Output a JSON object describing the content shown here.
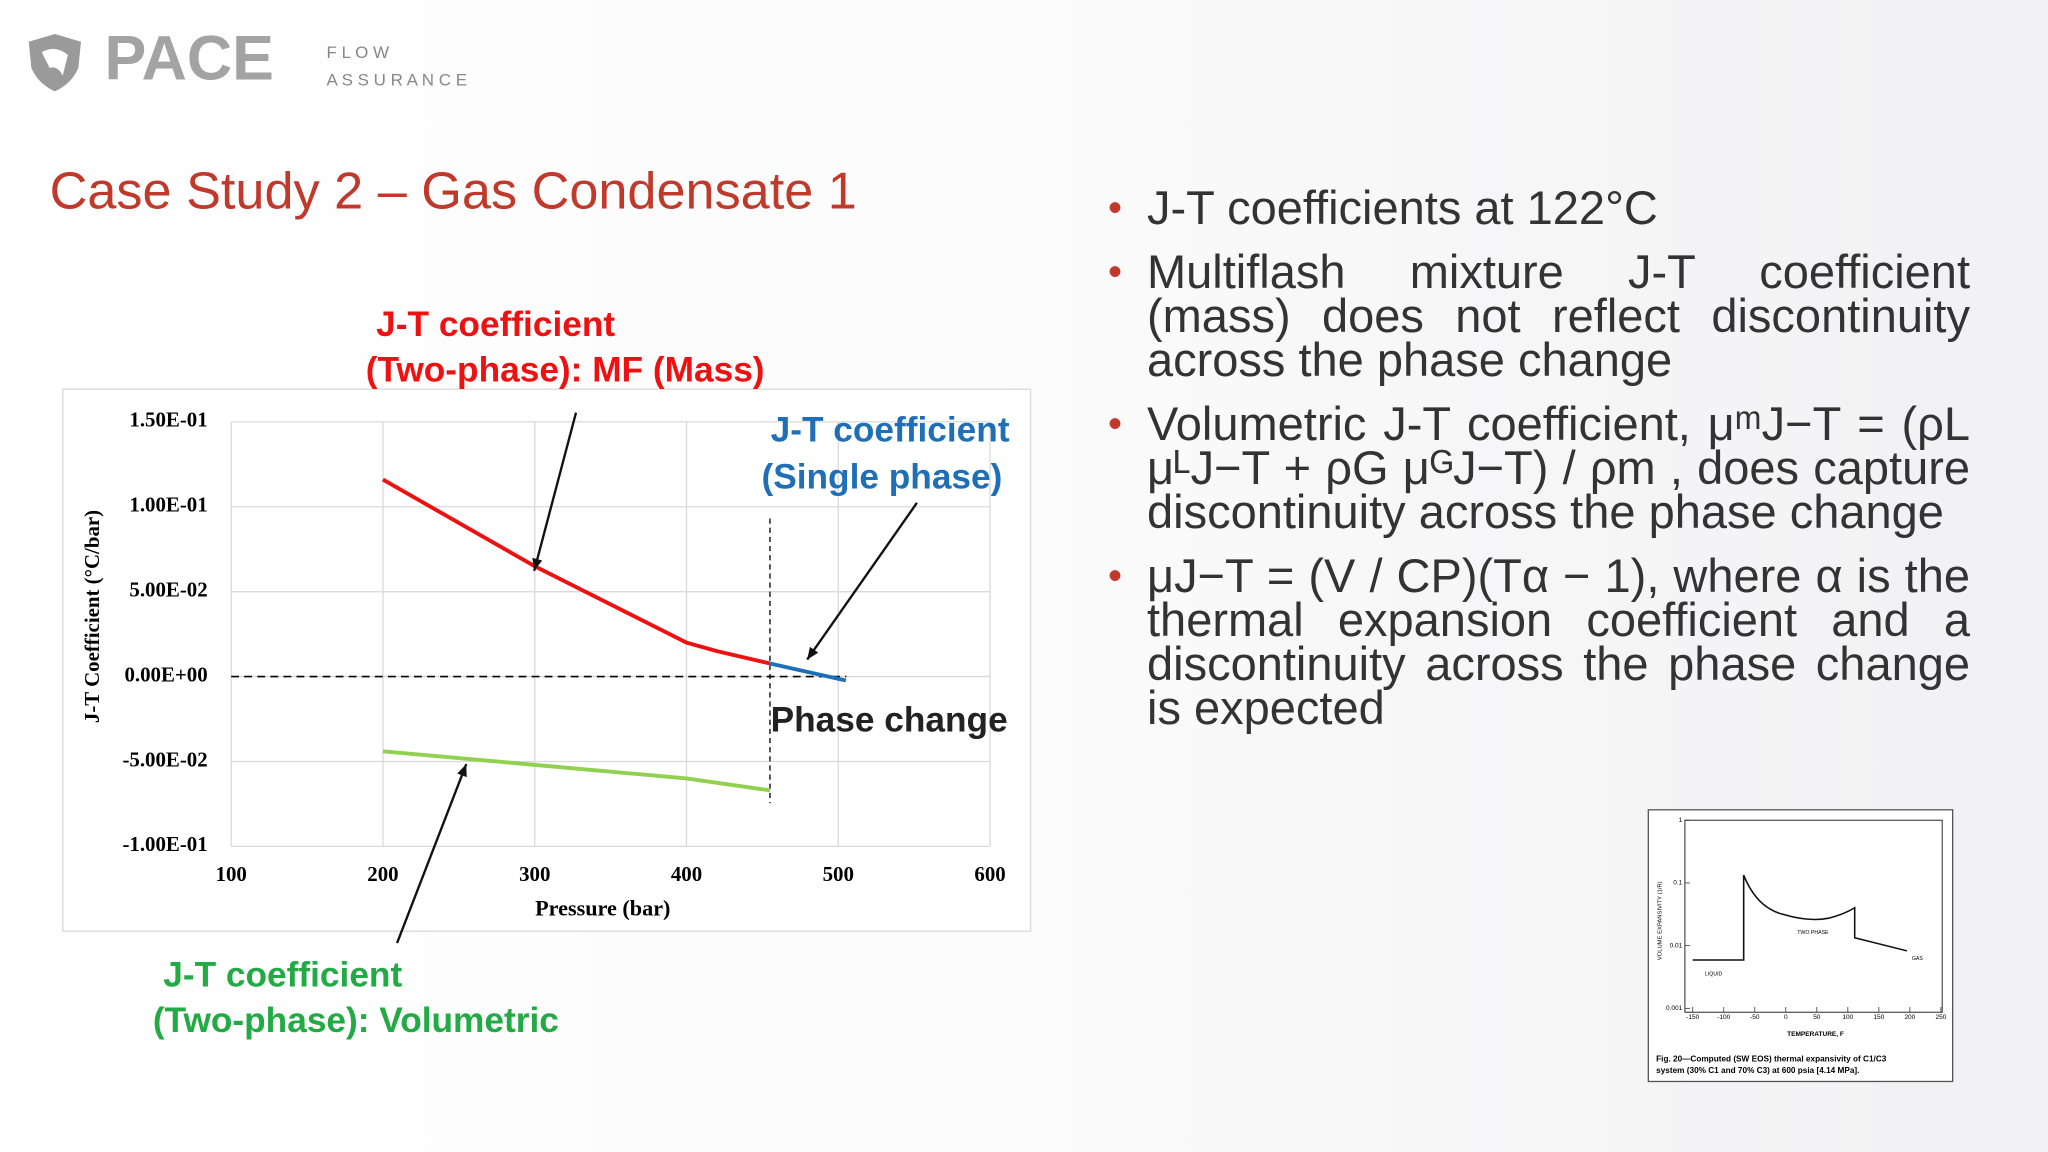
{
  "logo": {
    "brand": "PACE",
    "line1": "F L O W",
    "line2": "A S S U R A N C E"
  },
  "title": "Case Study 2 – Gas Condensate 1",
  "bullets": [
    "J-T coefficients at 122°C",
    "Multiflash mixture J-T coefficient (mass) does not reflect discontinuity across the phase change",
    "Volumetric J-T coefficient, μᵐJ−T = (ρL μᴸJ−T + ρG μᴳJ−T) / ρm , does capture discontinuity across the phase change",
    "μJ−T = (V / CP)(Tα − 1), where α is the thermal expansion coefficient and a discontinuity across the phase change is expected"
  ],
  "chart_data": {
    "type": "line",
    "x_title": "Pressure (bar)",
    "y_title": "J-T Coefficient  (°C/bar)",
    "xlim": [
      100,
      600
    ],
    "xticks": [
      100,
      200,
      300,
      400,
      500,
      600
    ],
    "ylim": [
      -0.1,
      0.15
    ],
    "yticks": [
      {
        "value": -0.1,
        "label": "-1.00E-01"
      },
      {
        "value": -0.05,
        "label": "-5.00E-02"
      },
      {
        "value": 0,
        "label": "0.00E+00"
      },
      {
        "value": 0.05,
        "label": "5.00E-02"
      },
      {
        "value": 0.1,
        "label": "1.00E-01"
      },
      {
        "value": 0.15,
        "label": "1.50E-01"
      }
    ],
    "grid": true,
    "series": [
      {
        "color": "#ee1111",
        "x": [
          200,
          300,
          400,
          420,
          455
        ],
        "values": [
          0.116,
          0.065,
          0.02,
          0.015,
          0.0077
        ]
      },
      {
        "color": "#1f6fb8",
        "x": [
          455,
          505
        ],
        "values": [
          0.0077,
          -0.0023
        ]
      },
      {
        "color": "#92d050",
        "x": [
          200,
          300,
          400,
          455
        ],
        "values": [
          -0.044,
          -0.052,
          -0.06,
          -0.067
        ]
      }
    ],
    "reference_lines": [
      {
        "axis": "y",
        "value": 0
      },
      {
        "axis": "x",
        "value": 455
      }
    ],
    "annotations": [
      {
        "lines": [
          "J-T coefficient",
          "(Two-phase): MF (Mass)"
        ],
        "color": "#ee1111"
      },
      {
        "lines": [
          "J-T coefficient",
          "(Single phase)"
        ],
        "color": "#1f6fb8"
      },
      {
        "lines": [
          "Phase change"
        ],
        "color": "#222222"
      },
      {
        "lines": [
          "J-T coefficient",
          "(Two-phase): Volumetric"
        ],
        "color": "#22aa44"
      }
    ]
  },
  "inset_figure": {
    "xticks": [
      "-150",
      "-100",
      "-50",
      "0",
      "50",
      "100",
      "150",
      "200",
      "250"
    ],
    "yticks": [
      "1",
      "0.1",
      "0.01",
      "0.001"
    ],
    "x_title": "TEMPERATURE, F",
    "y_title": "VOLUME EXPANSIVITY (1/R)",
    "labels": [
      "TWO PHASE",
      "LIQUID",
      "GAS"
    ],
    "caption": [
      "Fig. 20—Computed (SW EOS) thermal expansivity of C1/C3",
      "system (30% C1 and 70% C3) at 600 psia [4.14 MPa]."
    ]
  }
}
